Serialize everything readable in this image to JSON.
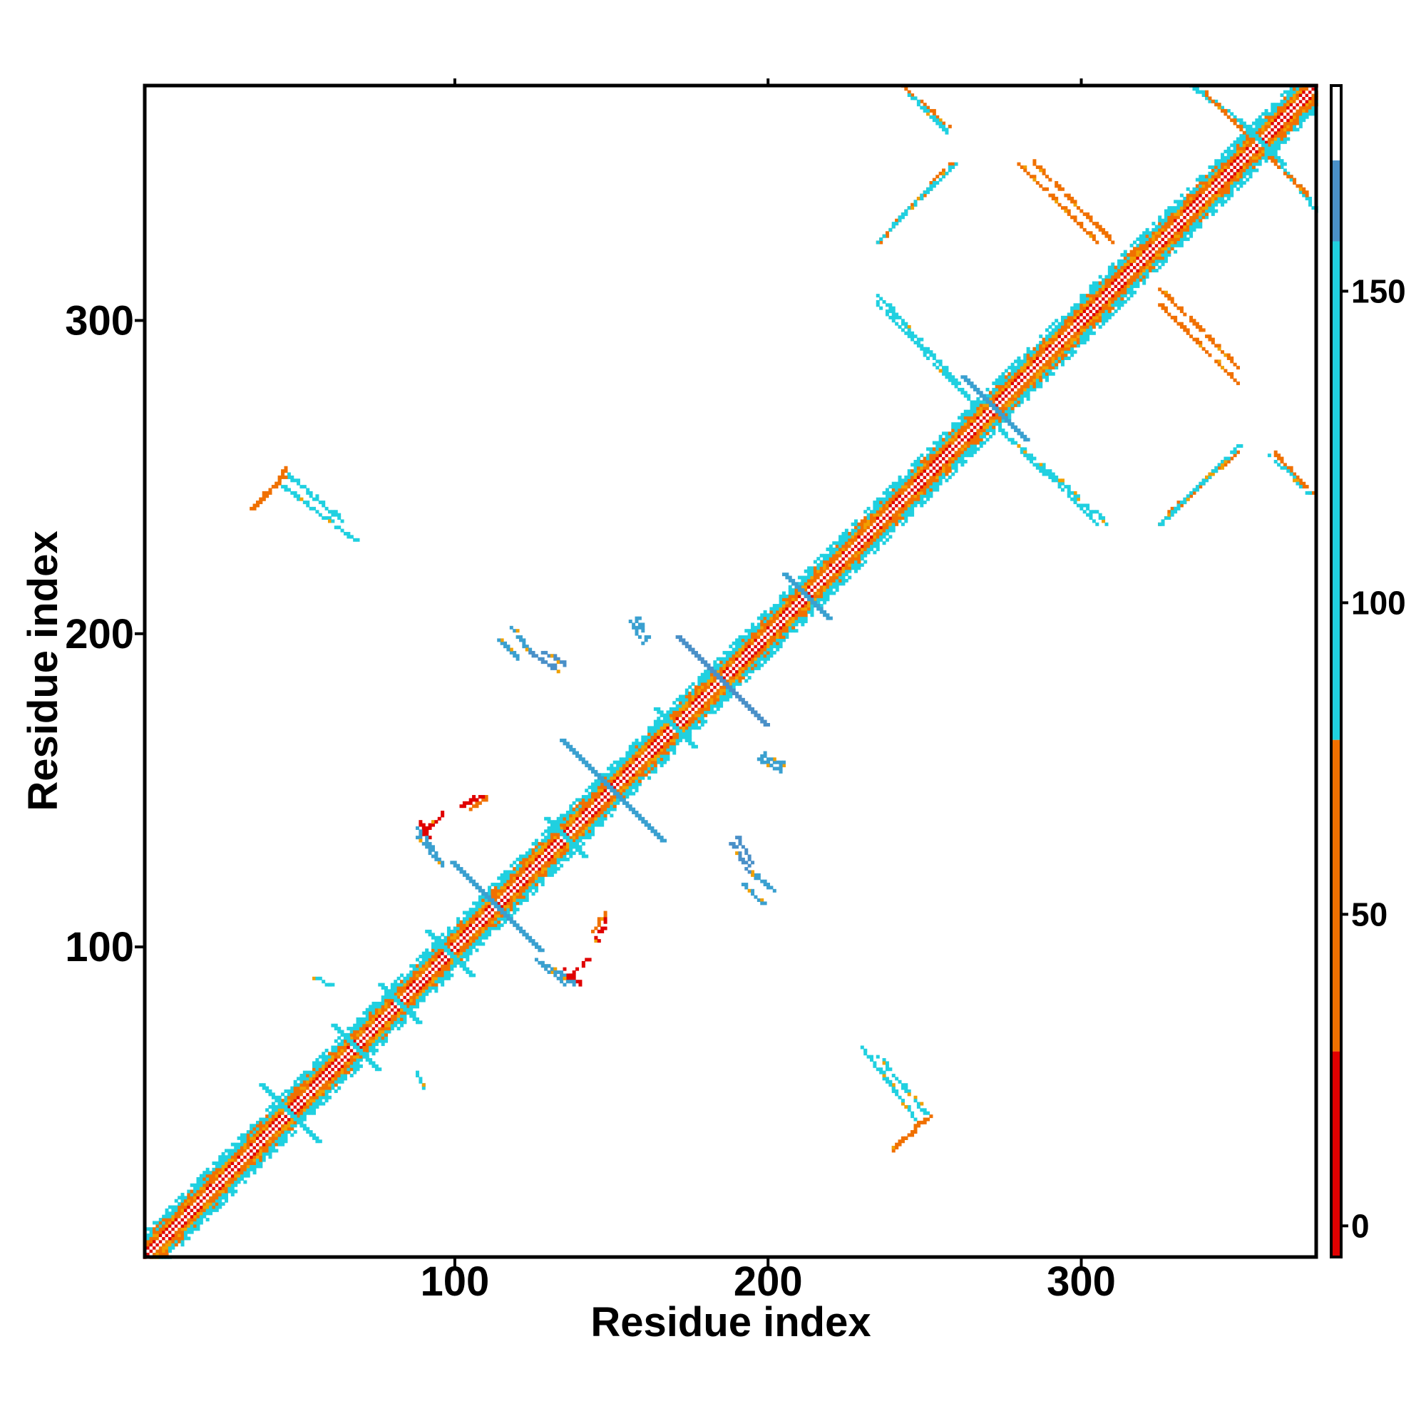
{
  "chart_data": {
    "type": "heatmap",
    "xlabel": "Residue index",
    "ylabel": "Residue index",
    "xlim": [
      1,
      375
    ],
    "ylim": [
      1,
      375
    ],
    "x_ticks": [
      100,
      200,
      300
    ],
    "y_ticks": [
      100,
      200,
      300
    ],
    "colorbar": {
      "range": [
        -5,
        183
      ],
      "ticks": [
        0,
        50,
        100,
        150
      ],
      "segments": [
        {
          "from": -5,
          "to": 28,
          "color": "#e00000"
        },
        {
          "from": 28,
          "to": 78,
          "color": "#f07000"
        },
        {
          "from": 78,
          "to": 158,
          "color": "#20d0e0"
        },
        {
          "from": 158,
          "to": 171,
          "color": "#4a90c8"
        },
        {
          "from": 171,
          "to": 183,
          "color": "#ffffff"
        }
      ]
    },
    "colors": {
      "red": "#e00000",
      "orange": "#f07000",
      "amber": "#f0a000",
      "cyan": "#20d0e0",
      "blue": "#3aa0d0",
      "steel": "#4a90c8"
    },
    "diagonal": {
      "from": 1,
      "to": 375,
      "band_width": 8
    },
    "features": [
      {
        "kind": "x",
        "cx": 47,
        "cy": 47,
        "len": 9,
        "color": "cyan"
      },
      {
        "kind": "x",
        "cx": 68,
        "cy": 68,
        "len": 7,
        "color": "cyan"
      },
      {
        "kind": "x",
        "cx": 82,
        "cy": 82,
        "len": 6,
        "color": "cyan"
      },
      {
        "kind": "x",
        "cx": 98,
        "cy": 98,
        "len": 7,
        "color": "cyan"
      },
      {
        "kind": "x",
        "cx": 113,
        "cy": 113,
        "len": 14,
        "color": "blue"
      },
      {
        "kind": "x",
        "cx": 135,
        "cy": 135,
        "len": 6,
        "color": "cyan"
      },
      {
        "kind": "x",
        "cx": 150,
        "cy": 150,
        "len": 16,
        "color": "blue"
      },
      {
        "kind": "x",
        "cx": 170,
        "cy": 170,
        "len": 6,
        "color": "cyan"
      },
      {
        "kind": "x",
        "cx": 185,
        "cy": 185,
        "len": 14,
        "color": "steel"
      },
      {
        "kind": "x",
        "cx": 212,
        "cy": 212,
        "len": 7,
        "color": "blue"
      },
      {
        "kind": "x",
        "cx": 272,
        "cy": 272,
        "len": 10,
        "color": "blue"
      },
      {
        "kind": "x",
        "cx": 357,
        "cy": 357,
        "len": 7,
        "color": "cyan"
      },
      {
        "kind": "line",
        "x1": 235,
        "y1": 65,
        "x2": 250,
        "y2": 47,
        "color": "cyan"
      },
      {
        "kind": "line",
        "x1": 240,
        "y1": 36,
        "x2": 252,
        "y2": 46,
        "color": "orange"
      },
      {
        "kind": "line",
        "x1": 235,
        "y1": 325,
        "x2": 258,
        "y2": 350,
        "color": "orange"
      },
      {
        "kind": "line",
        "x1": 235,
        "y1": 308,
        "x2": 260,
        "y2": 280,
        "color": "cyan"
      },
      {
        "kind": "line",
        "x1": 280,
        "y1": 350,
        "x2": 305,
        "y2": 325,
        "color": "orange"
      },
      {
        "kind": "line",
        "x1": 274,
        "y1": 265,
        "x2": 305,
        "y2": 235,
        "color": "cyan"
      },
      {
        "kind": "line",
        "x1": 325,
        "y1": 235,
        "x2": 350,
        "y2": 260,
        "color": "cyan"
      },
      {
        "kind": "line",
        "x1": 325,
        "y1": 310,
        "x2": 350,
        "y2": 285,
        "color": "orange"
      },
      {
        "kind": "line",
        "x1": 243,
        "y1": 375,
        "x2": 257,
        "y2": 362,
        "color": "orange"
      },
      {
        "kind": "line",
        "x1": 335,
        "y1": 375,
        "x2": 352,
        "y2": 362,
        "color": "cyan"
      },
      {
        "kind": "line",
        "x1": 360,
        "y1": 352,
        "x2": 372,
        "y2": 340,
        "color": "orange"
      },
      {
        "kind": "line",
        "x1": 360,
        "y1": 257,
        "x2": 372,
        "y2": 245,
        "color": "cyan"
      },
      {
        "kind": "line",
        "x1": 35,
        "y1": 240,
        "x2": 45,
        "y2": 250,
        "color": "orange"
      },
      {
        "kind": "line",
        "x1": 45,
        "y1": 247,
        "x2": 68,
        "y2": 230,
        "color": "cyan"
      },
      {
        "kind": "line",
        "x1": 118,
        "y1": 202,
        "x2": 123,
        "y2": 195,
        "color": "blue"
      },
      {
        "kind": "line",
        "x1": 127,
        "y1": 195,
        "x2": 135,
        "y2": 190,
        "color": "steel"
      },
      {
        "kind": "line",
        "x1": 158,
        "y1": 205,
        "x2": 161,
        "y2": 198,
        "color": "blue"
      },
      {
        "kind": "line",
        "x1": 88,
        "y1": 140,
        "x2": 92,
        "y2": 135,
        "color": "red"
      },
      {
        "kind": "line",
        "x1": 88,
        "y1": 135,
        "x2": 96,
        "y2": 126,
        "color": "blue"
      },
      {
        "kind": "line",
        "x1": 105,
        "y1": 144,
        "x2": 110,
        "y2": 148,
        "color": "orange"
      },
      {
        "kind": "line",
        "x1": 136,
        "y1": 90,
        "x2": 142,
        "y2": 96,
        "color": "red"
      },
      {
        "kind": "line",
        "x1": 128,
        "y1": 95,
        "x2": 138,
        "y2": 88,
        "color": "blue"
      },
      {
        "kind": "line",
        "x1": 145,
        "y1": 102,
        "x2": 148,
        "y2": 109,
        "color": "red"
      },
      {
        "kind": "line",
        "x1": 188,
        "y1": 133,
        "x2": 194,
        "y2": 124,
        "color": "steel"
      },
      {
        "kind": "line",
        "x1": 192,
        "y1": 120,
        "x2": 198,
        "y2": 114,
        "color": "blue"
      },
      {
        "kind": "line",
        "x1": 197,
        "y1": 160,
        "x2": 204,
        "y2": 156,
        "color": "blue"
      },
      {
        "kind": "line",
        "x1": 55,
        "y1": 90,
        "x2": 60,
        "y2": 88,
        "color": "cyan"
      }
    ]
  }
}
